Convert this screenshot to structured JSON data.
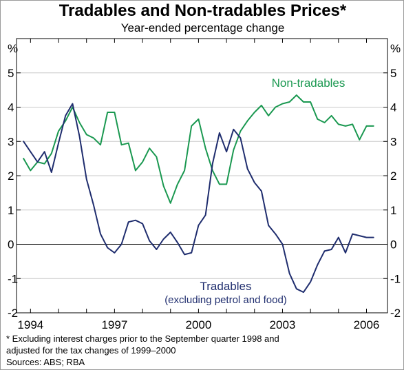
{
  "chart_data": {
    "type": "line",
    "title": "Tradables and Non-tradables Prices*",
    "subtitle": "Year-ended percentage change",
    "ylabel_left": "%",
    "ylabel_right": "%",
    "ylim": [
      -2,
      6
    ],
    "yticks": [
      5,
      4,
      3,
      2,
      1,
      0,
      -1,
      -2
    ],
    "ytick_labels": [
      "5",
      "4",
      "3",
      "2",
      "1",
      "0",
      "-1",
      "-2"
    ],
    "xlim": [
      1993.5,
      2006.75
    ],
    "xticks": [
      1994,
      1997,
      2000,
      2003,
      2006
    ],
    "xtick_labels": [
      "1994",
      "1997",
      "2000",
      "2003",
      "2006"
    ],
    "grid": "horizontal",
    "series": [
      {
        "name": "Non-tradables",
        "color": "#1a9850",
        "x": [
          1993.75,
          1994,
          1994.25,
          1994.5,
          1994.75,
          1995,
          1995.25,
          1995.5,
          1995.75,
          1996,
          1996.25,
          1996.5,
          1996.75,
          1997,
          1997.25,
          1997.5,
          1997.75,
          1998,
          1998.25,
          1998.5,
          1998.75,
          1999,
          1999.25,
          1999.5,
          1999.75,
          2000,
          2000.25,
          2000.5,
          2000.75,
          2001,
          2001.25,
          2001.5,
          2001.75,
          2002,
          2002.25,
          2002.5,
          2002.75,
          2003,
          2003.25,
          2003.5,
          2003.75,
          2004,
          2004.25,
          2004.5,
          2004.75,
          2005,
          2005.25,
          2005.5,
          2005.75,
          2006,
          2006.25
        ],
        "values": [
          2.5,
          2.15,
          2.4,
          2.35,
          2.65,
          3.3,
          3.6,
          4.0,
          3.55,
          3.2,
          3.1,
          2.9,
          3.85,
          3.85,
          2.9,
          2.95,
          2.15,
          2.4,
          2.8,
          2.55,
          1.7,
          1.2,
          1.75,
          2.15,
          3.45,
          3.65,
          2.8,
          2.15,
          1.75,
          1.75,
          2.75,
          3.3,
          3.6,
          3.85,
          4.05,
          3.75,
          4.0,
          4.1,
          4.15,
          4.35,
          4.15,
          4.15,
          3.65,
          3.55,
          3.75,
          3.5,
          3.45,
          3.5,
          3.05,
          3.45,
          3.45
        ]
      },
      {
        "name": "Tradables",
        "annotation": "(excluding petrol and food)",
        "color": "#1f2d6e",
        "x": [
          1993.75,
          1994,
          1994.25,
          1994.5,
          1994.75,
          1995,
          1995.25,
          1995.5,
          1995.75,
          1996,
          1996.25,
          1996.5,
          1996.75,
          1997,
          1997.25,
          1997.5,
          1997.75,
          1998,
          1998.25,
          1998.5,
          1998.75,
          1999,
          1999.25,
          1999.5,
          1999.75,
          2000,
          2000.25,
          2000.5,
          2000.75,
          2001,
          2001.25,
          2001.5,
          2001.75,
          2002,
          2002.25,
          2002.5,
          2002.75,
          2003,
          2003.25,
          2003.5,
          2003.75,
          2004,
          2004.25,
          2004.5,
          2004.75,
          2005,
          2005.25,
          2005.5,
          2005.75,
          2006,
          2006.25
        ],
        "values": [
          3.0,
          2.7,
          2.4,
          2.7,
          2.1,
          2.95,
          3.75,
          4.1,
          3.15,
          1.9,
          1.15,
          0.3,
          -0.1,
          -0.25,
          0.0,
          0.65,
          0.7,
          0.6,
          0.1,
          -0.15,
          0.15,
          0.35,
          0.05,
          -0.3,
          -0.25,
          0.55,
          0.85,
          2.35,
          3.25,
          2.7,
          3.35,
          3.1,
          2.2,
          1.8,
          1.55,
          0.55,
          0.3,
          0.0,
          -0.85,
          -1.3,
          -1.4,
          -1.1,
          -0.6,
          -0.2,
          -0.15,
          0.2,
          -0.25,
          0.3,
          0.25,
          0.2,
          0.2
        ]
      }
    ],
    "legend": [
      {
        "text": "Non-tradables",
        "position": "top-right"
      },
      {
        "text": "Tradables",
        "position": "bottom-center"
      },
      {
        "text": "(excluding petrol and food)",
        "position": "bottom-center"
      }
    ]
  },
  "footnotes": {
    "line1": "*   Excluding interest charges prior to the September quarter 1998 and",
    "line2": "     adjusted for the tax changes of 1999–2000",
    "sources": "Sources: ABS; RBA"
  }
}
